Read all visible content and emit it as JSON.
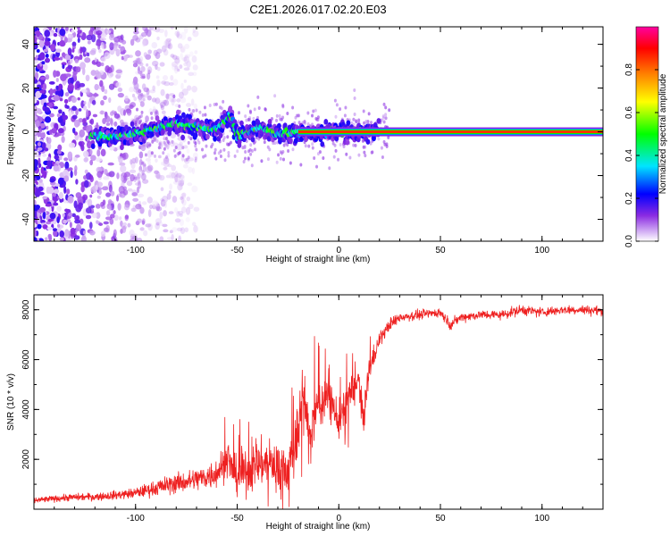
{
  "title": "C2E1.2026.017.02.20.E03",
  "chart_data": [
    {
      "type": "heatmap",
      "xlabel": "Height of straight line (km)",
      "ylabel": "Frequency (Hz)",
      "xlim": [
        -150,
        130
      ],
      "ylim": [
        -50,
        48
      ],
      "xticks": [
        -100,
        -50,
        0,
        50,
        100
      ],
      "yticks": [
        -40,
        -20,
        0,
        20,
        40
      ],
      "colorbar": {
        "label": "Normalized spectral amplitude",
        "ticks": [
          0.0,
          0.2,
          0.4,
          0.6,
          0.8
        ],
        "tick_labels": [
          "0.0",
          "0.2",
          "0.4",
          "0.6",
          "0.8"
        ],
        "range": [
          0,
          1
        ],
        "colors": [
          "#ffffff",
          "#8a2be2",
          "#0000ff",
          "#00e5ff",
          "#00ff00",
          "#ffff00",
          "#ff8000",
          "#ff0000",
          "#ff00a0"
        ]
      },
      "carrier_line": {
        "frequency": 0,
        "x_start": -20,
        "x_end": 130,
        "peak_amplitude": 0.85
      },
      "signal_trace": [
        {
          "x": -122,
          "y": -2
        },
        {
          "x": -110,
          "y": -2
        },
        {
          "x": -100,
          "y": -1
        },
        {
          "x": -90,
          "y": 2
        },
        {
          "x": -80,
          "y": 4
        },
        {
          "x": -70,
          "y": 2
        },
        {
          "x": -60,
          "y": 1
        },
        {
          "x": -53,
          "y": 8
        },
        {
          "x": -50,
          "y": -2
        },
        {
          "x": -40,
          "y": 2
        },
        {
          "x": -30,
          "y": -1
        },
        {
          "x": -20,
          "y": 0
        },
        {
          "x": 0,
          "y": 0
        },
        {
          "x": 20,
          "y": 0
        }
      ],
      "noise_region": {
        "x_start": -150,
        "x_end": -70,
        "amplitude": 0.15
      }
    },
    {
      "type": "line",
      "xlabel": "Height of straight line (km)",
      "ylabel": "SNR (10 * v/v)",
      "xlim": [
        -150,
        130
      ],
      "ylim": [
        0,
        8600
      ],
      "xticks": [
        -100,
        -50,
        0,
        50,
        100
      ],
      "yticks": [
        2000,
        4000,
        6000,
        8000
      ],
      "series": [
        {
          "color": "#ee2020",
          "x": [
            -150,
            -140,
            -130,
            -120,
            -110,
            -100,
            -95,
            -90,
            -85,
            -80,
            -75,
            -70,
            -65,
            -60,
            -55,
            -50,
            -45,
            -40,
            -35,
            -30,
            -25,
            -20,
            -18,
            -15,
            -10,
            -5,
            0,
            5,
            10,
            12,
            15,
            20,
            25,
            30,
            40,
            50,
            55,
            60,
            70,
            80,
            90,
            100,
            110,
            120,
            130
          ],
          "values": [
            350,
            420,
            480,
            500,
            560,
            650,
            750,
            850,
            950,
            1050,
            1100,
            1200,
            1300,
            1500,
            1900,
            1300,
            1500,
            1800,
            1900,
            1800,
            1600,
            3000,
            4800,
            3000,
            4200,
            4600,
            3500,
            4500,
            5200,
            3500,
            5600,
            6800,
            7400,
            7700,
            7800,
            7900,
            7400,
            7700,
            7800,
            7800,
            8000,
            7900,
            8000,
            8000,
            7950
          ],
          "noise": [
            120,
            120,
            140,
            150,
            170,
            200,
            250,
            300,
            350,
            380,
            400,
            450,
            500,
            600,
            700,
            700,
            800,
            900,
            900,
            1000,
            1100,
            1200,
            1200,
            1000,
            900,
            800,
            800,
            700,
            600,
            600,
            500,
            300,
            250,
            200,
            180,
            180,
            200,
            180,
            180,
            180,
            200,
            180,
            180,
            180,
            180
          ]
        }
      ]
    }
  ]
}
